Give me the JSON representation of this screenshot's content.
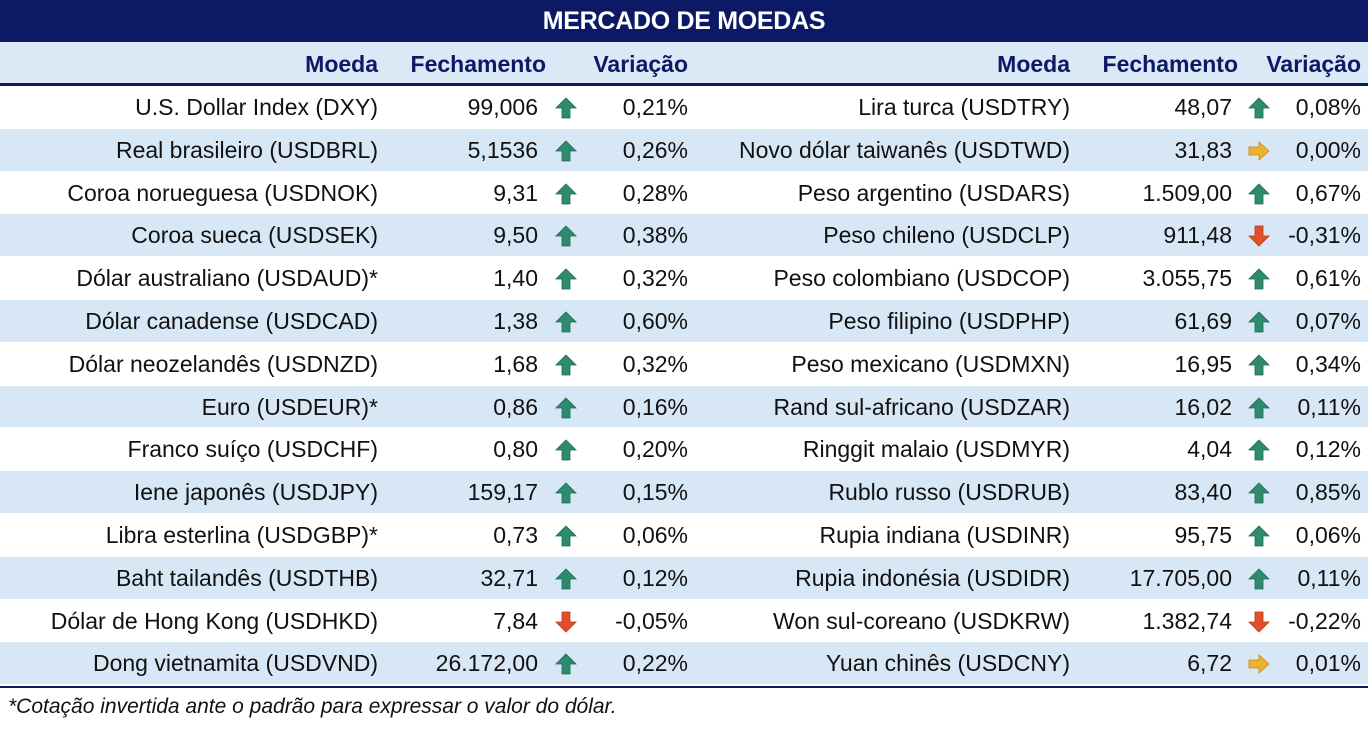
{
  "title": "MERCADO DE MOEDAS",
  "headers": {
    "moeda": "Moeda",
    "fechamento": "Fechamento",
    "variacao": "Variação"
  },
  "colors": {
    "header_bg": "#0c1a66",
    "alt_row": "#d8e7f6",
    "up": "#2e8b6f",
    "down": "#e0502a",
    "flat": "#f0b030"
  },
  "left": [
    {
      "name": "U.S. Dollar Index (DXY)",
      "close": "99,006",
      "dir": "up",
      "change": "0,21%"
    },
    {
      "name": "Real brasileiro (USDBRL)",
      "close": "5,1536",
      "dir": "up",
      "change": "0,26%"
    },
    {
      "name": "Coroa norueguesa (USDNOK)",
      "close": "9,31",
      "dir": "up",
      "change": "0,28%"
    },
    {
      "name": "Coroa sueca (USDSEK)",
      "close": "9,50",
      "dir": "up",
      "change": "0,38%"
    },
    {
      "name": "Dólar australiano (USDAUD)*",
      "close": "1,40",
      "dir": "up",
      "change": "0,32%"
    },
    {
      "name": "Dólar canadense (USDCAD)",
      "close": "1,38",
      "dir": "up",
      "change": "0,60%"
    },
    {
      "name": "Dólar neozelandês (USDNZD)",
      "close": "1,68",
      "dir": "up",
      "change": "0,32%"
    },
    {
      "name": "Euro (USDEUR)*",
      "close": "0,86",
      "dir": "up",
      "change": "0,16%"
    },
    {
      "name": "Franco suíço (USDCHF)",
      "close": "0,80",
      "dir": "up",
      "change": "0,20%"
    },
    {
      "name": "Iene japonês (USDJPY)",
      "close": "159,17",
      "dir": "up",
      "change": "0,15%"
    },
    {
      "name": "Libra esterlina (USDGBP)*",
      "close": "0,73",
      "dir": "up",
      "change": "0,06%"
    },
    {
      "name": "Baht tailandês (USDTHB)",
      "close": "32,71",
      "dir": "up",
      "change": "0,12%"
    },
    {
      "name": "Dólar de Hong Kong (USDHKD)",
      "close": "7,84",
      "dir": "down",
      "change": "-0,05%"
    },
    {
      "name": "Dong vietnamita (USDVND)",
      "close": "26.172,00",
      "dir": "up",
      "change": "0,22%"
    }
  ],
  "right": [
    {
      "name": "Lira turca (USDTRY)",
      "close": "48,07",
      "dir": "up",
      "change": "0,08%"
    },
    {
      "name": "Novo dólar taiwanês (USDTWD)",
      "close": "31,83",
      "dir": "flat",
      "change": "0,00%"
    },
    {
      "name": "Peso argentino (USDARS)",
      "close": "1.509,00",
      "dir": "up",
      "change": "0,67%"
    },
    {
      "name": "Peso chileno (USDCLP)",
      "close": "911,48",
      "dir": "down",
      "change": "-0,31%"
    },
    {
      "name": "Peso colombiano (USDCOP)",
      "close": "3.055,75",
      "dir": "up",
      "change": "0,61%"
    },
    {
      "name": "Peso filipino (USDPHP)",
      "close": "61,69",
      "dir": "up",
      "change": "0,07%"
    },
    {
      "name": "Peso mexicano (USDMXN)",
      "close": "16,95",
      "dir": "up",
      "change": "0,34%"
    },
    {
      "name": "Rand sul-africano (USDZAR)",
      "close": "16,02",
      "dir": "up",
      "change": "0,11%"
    },
    {
      "name": "Ringgit malaio (USDMYR)",
      "close": "4,04",
      "dir": "up",
      "change": "0,12%"
    },
    {
      "name": "Rublo russo (USDRUB)",
      "close": "83,40",
      "dir": "up",
      "change": "0,85%"
    },
    {
      "name": "Rupia indiana (USDINR)",
      "close": "95,75",
      "dir": "up",
      "change": "0,06%"
    },
    {
      "name": "Rupia indonésia (USDIDR)",
      "close": "17.705,00",
      "dir": "up",
      "change": "0,11%"
    },
    {
      "name": "Won sul-coreano (USDKRW)",
      "close": "1.382,74",
      "dir": "down",
      "change": "-0,22%"
    },
    {
      "name": "Yuan chinês (USDCNY)",
      "close": "6,72",
      "dir": "flat",
      "change": "0,01%"
    }
  ],
  "footnote": "*Cotação invertida ante o padrão para expressar o valor do dólar."
}
